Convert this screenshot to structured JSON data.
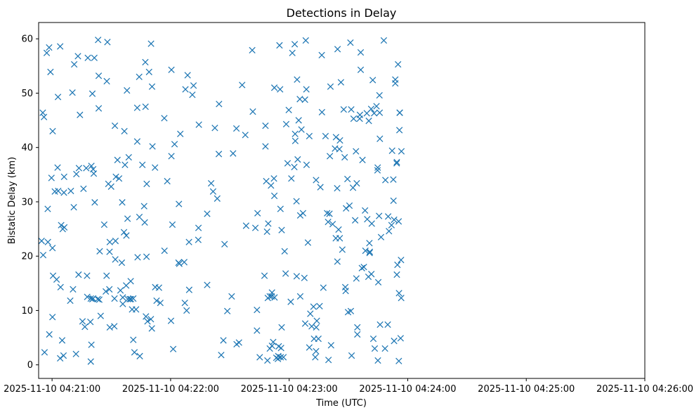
{
  "chart_data": {
    "type": "scatter",
    "title": "Detections in Delay",
    "xlabel": "Time (UTC)",
    "ylabel": "Bistatic Delay (km)",
    "x_unit": "seconds after 2025-11-10 04:21:00 UTC",
    "xlim": [
      -6.8,
      300
    ],
    "ylim": [
      -2.5,
      63
    ],
    "x_ticks": [
      {
        "value": 0,
        "label": "2025-11-10 04:21:00"
      },
      {
        "value": 60,
        "label": "2025-11-10 04:22:00"
      },
      {
        "value": 120,
        "label": "2025-11-10 04:23:00"
      },
      {
        "value": 180,
        "label": "2025-11-10 04:24:00"
      },
      {
        "value": 240,
        "label": "2025-11-10 04:25:00"
      },
      {
        "value": 300,
        "label": "2025-11-10 04:26:00"
      }
    ],
    "y_ticks": [
      0,
      10,
      20,
      30,
      40,
      50,
      60
    ],
    "marker": "x",
    "color": "#1f77b4",
    "grid": false,
    "points": [
      [
        -5.3,
        22.8
      ],
      [
        -4.7,
        46.4
      ],
      [
        -4.5,
        20.2
      ],
      [
        -4.1,
        45.6
      ],
      [
        -3.8,
        2.3
      ],
      [
        -2.7,
        57.4
      ],
      [
        -2.2,
        28.7
      ],
      [
        -2.1,
        22.6
      ],
      [
        -1.5,
        58.4
      ],
      [
        -1.4,
        5.6
      ],
      [
        -0.8,
        53.9
      ],
      [
        0.2,
        8.8
      ],
      [
        0.3,
        43.0
      ],
      [
        -0.3,
        34.4
      ],
      [
        0.2,
        21.5
      ],
      [
        0.5,
        16.4
      ],
      [
        1.4,
        31.9
      ],
      [
        2.3,
        15.7
      ],
      [
        3.1,
        32.0
      ],
      [
        2.8,
        36.3
      ],
      [
        3.0,
        49.3
      ],
      [
        4.1,
        58.6
      ],
      [
        4.1,
        1.2
      ],
      [
        4.3,
        14.3
      ],
      [
        4.6,
        25.7
      ],
      [
        5.1,
        4.5
      ],
      [
        5.4,
        25.0
      ],
      [
        5.8,
        1.7
      ],
      [
        6.0,
        31.7
      ],
      [
        6.1,
        34.6
      ],
      [
        6.2,
        25.3
      ],
      [
        9.2,
        11.8
      ],
      [
        9.5,
        32.0
      ],
      [
        10.3,
        50.1
      ],
      [
        10.6,
        13.9
      ],
      [
        11.0,
        29.0
      ],
      [
        11.2,
        55.3
      ],
      [
        12.1,
        2.0
      ],
      [
        12.3,
        35.1
      ],
      [
        13.1,
        56.8
      ],
      [
        13.4,
        16.6
      ],
      [
        13.6,
        36.2
      ],
      [
        14.1,
        46.0
      ],
      [
        15.4,
        8.0
      ],
      [
        15.9,
        32.4
      ],
      [
        16.6,
        7.0
      ],
      [
        17.3,
        36.2
      ],
      [
        17.7,
        16.4
      ],
      [
        17.8,
        12.5
      ],
      [
        18.1,
        56.5
      ],
      [
        19.4,
        7.9
      ],
      [
        19.6,
        12.2
      ],
      [
        19.6,
        0.6
      ],
      [
        19.9,
        36.6
      ],
      [
        19.9,
        3.7
      ],
      [
        20.4,
        49.9
      ],
      [
        20.4,
        12.1
      ],
      [
        20.8,
        36.0
      ],
      [
        20.8,
        12.2
      ],
      [
        21.1,
        35.2
      ],
      [
        21.4,
        56.5
      ],
      [
        21.6,
        29.9
      ],
      [
        23.1,
        12.1
      ],
      [
        23.3,
        59.8
      ],
      [
        23.6,
        53.2
      ],
      [
        23.6,
        47.2
      ],
      [
        23.9,
        12.0
      ],
      [
        24.1,
        20.9
      ],
      [
        24.6,
        9.0
      ],
      [
        26.4,
        25.8
      ],
      [
        27.2,
        13.5
      ],
      [
        27.6,
        16.4
      ],
      [
        27.7,
        52.2
      ],
      [
        28.0,
        59.4
      ],
      [
        28.5,
        33.3
      ],
      [
        29.0,
        13.9
      ],
      [
        29.1,
        20.8
      ],
      [
        29.2,
        22.6
      ],
      [
        29.2,
        6.9
      ],
      [
        29.9,
        32.8
      ],
      [
        31.5,
        7.1
      ],
      [
        31.6,
        12.2
      ],
      [
        31.8,
        44.0
      ],
      [
        32.0,
        19.4
      ],
      [
        32.1,
        22.8
      ],
      [
        32.3,
        34.6
      ],
      [
        33.1,
        37.7
      ],
      [
        33.9,
        34.3
      ],
      [
        34.6,
        13.7
      ],
      [
        35.3,
        18.8
      ],
      [
        35.5,
        29.9
      ],
      [
        35.8,
        11.2
      ],
      [
        35.8,
        12.4
      ],
      [
        36.4,
        24.4
      ],
      [
        36.6,
        43.0
      ],
      [
        36.9,
        36.8
      ],
      [
        37.5,
        14.6
      ],
      [
        37.6,
        23.8
      ],
      [
        37.9,
        50.5
      ],
      [
        38.2,
        26.9
      ],
      [
        38.3,
        12.1
      ],
      [
        38.8,
        38.2
      ],
      [
        39.3,
        12.1
      ],
      [
        39.8,
        15.4
      ],
      [
        39.9,
        12.1
      ],
      [
        40.5,
        10.2
      ],
      [
        41.1,
        12.2
      ],
      [
        41.1,
        4.6
      ],
      [
        41.7,
        2.3
      ],
      [
        42.5,
        10.2
      ],
      [
        43.1,
        47.3
      ],
      [
        43.1,
        41.1
      ],
      [
        43.3,
        19.8
      ],
      [
        44.1,
        53.0
      ],
      [
        44.2,
        27.2
      ],
      [
        44.4,
        1.6
      ],
      [
        45.7,
        36.8
      ],
      [
        46.6,
        29.2
      ],
      [
        46.9,
        26.2
      ],
      [
        47.2,
        55.7
      ],
      [
        47.3,
        47.5
      ],
      [
        47.5,
        8.9
      ],
      [
        47.8,
        19.9
      ],
      [
        47.9,
        33.3
      ],
      [
        48.3,
        8.0
      ],
      [
        49.1,
        53.9
      ],
      [
        50.0,
        8.4
      ],
      [
        50.1,
        59.1
      ],
      [
        50.5,
        6.7
      ],
      [
        50.6,
        51.2
      ],
      [
        50.8,
        40.2
      ],
      [
        52.1,
        36.3
      ],
      [
        52.2,
        14.3
      ],
      [
        52.9,
        11.8
      ],
      [
        54.1,
        14.2
      ],
      [
        54.8,
        11.4
      ],
      [
        56.8,
        45.4
      ],
      [
        56.9,
        21.0
      ],
      [
        58.3,
        33.8
      ],
      [
        60.2,
        8.1
      ],
      [
        60.4,
        54.3
      ],
      [
        60.4,
        38.4
      ],
      [
        60.9,
        25.8
      ],
      [
        61.3,
        2.9
      ],
      [
        62.0,
        40.6
      ],
      [
        64.0,
        18.8
      ],
      [
        64.2,
        29.6
      ],
      [
        64.4,
        18.6
      ],
      [
        64.9,
        42.5
      ],
      [
        66.9,
        18.9
      ],
      [
        67.2,
        11.4
      ],
      [
        67.5,
        50.7
      ],
      [
        68.1,
        10.0
      ],
      [
        68.6,
        53.3
      ],
      [
        69.3,
        22.6
      ],
      [
        69.4,
        13.8
      ],
      [
        71.0,
        49.7
      ],
      [
        71.6,
        51.4
      ],
      [
        74.0,
        23.0
      ],
      [
        74.1,
        25.2
      ],
      [
        74.3,
        44.2
      ],
      [
        78.5,
        14.7
      ],
      [
        78.5,
        27.8
      ],
      [
        80.5,
        33.4
      ],
      [
        81.5,
        31.9
      ],
      [
        82.4,
        43.6
      ],
      [
        83.6,
        30.6
      ],
      [
        84.4,
        38.8
      ],
      [
        84.5,
        48.0
      ],
      [
        85.6,
        1.8
      ],
      [
        86.7,
        4.5
      ],
      [
        87.3,
        22.2
      ],
      [
        88.7,
        9.9
      ],
      [
        90.9,
        12.6
      ],
      [
        91.6,
        38.9
      ],
      [
        93.3,
        43.5
      ],
      [
        93.4,
        3.8
      ],
      [
        94.6,
        4.1
      ],
      [
        96.2,
        51.5
      ],
      [
        97.8,
        42.3
      ],
      [
        98.2,
        25.6
      ],
      [
        101.3,
        57.9
      ],
      [
        101.6,
        46.6
      ],
      [
        102.9,
        25.2
      ],
      [
        103.7,
        10.1
      ],
      [
        103.7,
        6.3
      ],
      [
        104.0,
        27.9
      ],
      [
        105.1,
        1.4
      ],
      [
        107.5,
        16.4
      ],
      [
        108.0,
        40.2
      ],
      [
        108.0,
        44.0
      ],
      [
        108.4,
        33.8
      ],
      [
        108.8,
        24.5
      ],
      [
        109.0,
        0.8
      ],
      [
        109.2,
        12.3
      ],
      [
        109.4,
        26.0
      ],
      [
        110.2,
        3.0
      ],
      [
        110.2,
        12.6
      ],
      [
        110.8,
        33.0
      ],
      [
        111.1,
        12.6
      ],
      [
        111.3,
        3.5
      ],
      [
        111.3,
        13.3
      ],
      [
        111.9,
        4.2
      ],
      [
        112.3,
        34.3
      ],
      [
        112.5,
        51.0
      ],
      [
        112.5,
        31.1
      ],
      [
        112.6,
        12.4
      ],
      [
        113.5,
        1.3
      ],
      [
        114.3,
        1.1
      ],
      [
        114.5,
        1.6
      ],
      [
        114.7,
        3.4
      ],
      [
        115.1,
        58.8
      ],
      [
        115.4,
        50.7
      ],
      [
        115.6,
        28.7
      ],
      [
        115.7,
        1.4
      ],
      [
        115.9,
        3.1
      ],
      [
        116.2,
        6.9
      ],
      [
        116.2,
        24.8
      ],
      [
        117.1,
        1.4
      ],
      [
        117.7,
        20.9
      ],
      [
        118.2,
        16.8
      ],
      [
        118.5,
        44.3
      ],
      [
        119.2,
        37.1
      ],
      [
        119.8,
        46.9
      ],
      [
        120.8,
        11.6
      ],
      [
        121.1,
        34.3
      ],
      [
        121.6,
        57.4
      ],
      [
        122.6,
        36.4
      ],
      [
        122.8,
        59.0
      ],
      [
        123.0,
        42.5
      ],
      [
        123.1,
        41.2
      ],
      [
        123.7,
        30.1
      ],
      [
        123.8,
        16.3
      ],
      [
        124.0,
        52.5
      ],
      [
        124.3,
        37.8
      ],
      [
        124.8,
        45.0
      ],
      [
        125.4,
        48.9
      ],
      [
        125.6,
        12.6
      ],
      [
        125.6,
        27.5
      ],
      [
        126.2,
        43.3
      ],
      [
        127.0,
        27.9
      ],
      [
        127.7,
        16.0
      ],
      [
        128.0,
        48.8
      ],
      [
        128.1,
        7.6
      ],
      [
        128.4,
        59.7
      ],
      [
        128.7,
        50.7
      ],
      [
        128.8,
        36.8
      ],
      [
        129.5,
        22.5
      ],
      [
        130.2,
        42.1
      ],
      [
        130.2,
        3.2
      ],
      [
        130.7,
        9.4
      ],
      [
        131.4,
        7.1
      ],
      [
        132.3,
        10.7
      ],
      [
        132.6,
        4.8
      ],
      [
        133.2,
        1.4
      ],
      [
        133.6,
        34.0
      ],
      [
        133.6,
        2.5
      ],
      [
        133.7,
        6.9
      ],
      [
        134.0,
        8.1
      ],
      [
        134.8,
        4.8
      ],
      [
        135.4,
        10.8
      ],
      [
        135.8,
        32.7
      ],
      [
        136.5,
        57.0
      ],
      [
        136.6,
        46.5
      ],
      [
        137.3,
        14.2
      ],
      [
        138.4,
        42.1
      ],
      [
        139.2,
        27.9
      ],
      [
        139.7,
        26.3
      ],
      [
        139.9,
        0.9
      ],
      [
        140.4,
        27.8
      ],
      [
        140.6,
        38.4
      ],
      [
        140.9,
        51.2
      ],
      [
        141.2,
        3.6
      ],
      [
        142.0,
        25.9
      ],
      [
        143.2,
        39.8
      ],
      [
        143.6,
        23.3
      ],
      [
        143.7,
        41.9
      ],
      [
        144.3,
        32.5
      ],
      [
        144.4,
        19.0
      ],
      [
        144.5,
        58.1
      ],
      [
        145.0,
        24.9
      ],
      [
        145.4,
        39.7
      ],
      [
        145.6,
        23.3
      ],
      [
        145.7,
        41.3
      ],
      [
        146.2,
        52.0
      ],
      [
        146.9,
        21.2
      ],
      [
        147.6,
        47.0
      ],
      [
        148.1,
        38.2
      ],
      [
        148.4,
        14.3
      ],
      [
        148.6,
        13.6
      ],
      [
        148.8,
        28.8
      ],
      [
        149.5,
        34.2
      ],
      [
        149.8,
        9.7
      ],
      [
        150.5,
        29.3
      ],
      [
        151.0,
        59.3
      ],
      [
        151.2,
        9.9
      ],
      [
        151.4,
        47.0
      ],
      [
        151.6,
        1.7
      ],
      [
        152.3,
        32.6
      ],
      [
        152.6,
        45.3
      ],
      [
        153.4,
        26.6
      ],
      [
        153.8,
        39.3
      ],
      [
        154.0,
        15.9
      ],
      [
        154.2,
        33.4
      ],
      [
        154.5,
        6.9
      ],
      [
        154.5,
        5.6
      ],
      [
        155.7,
        45.3
      ],
      [
        155.8,
        46.0
      ],
      [
        156.2,
        57.5
      ],
      [
        156.2,
        54.3
      ],
      [
        156.8,
        17.8
      ],
      [
        157.1,
        37.7
      ],
      [
        157.8,
        18.0
      ],
      [
        158.4,
        28.4
      ],
      [
        158.6,
        21.0
      ],
      [
        159.3,
        46.3
      ],
      [
        159.5,
        26.8
      ],
      [
        160.1,
        16.2
      ],
      [
        160.3,
        44.9
      ],
      [
        160.6,
        22.4
      ],
      [
        160.7,
        20.6
      ],
      [
        160.8,
        20.8
      ],
      [
        161.5,
        47.1
      ],
      [
        161.6,
        16.7
      ],
      [
        161.8,
        26.0
      ],
      [
        162.3,
        52.4
      ],
      [
        162.6,
        4.8
      ],
      [
        163.0,
        46.3
      ],
      [
        163.3,
        3.0
      ],
      [
        164.2,
        47.6
      ],
      [
        164.7,
        35.8
      ],
      [
        164.8,
        36.3
      ],
      [
        164.9,
        0.8
      ],
      [
        165.1,
        15.2
      ],
      [
        165.5,
        27.4
      ],
      [
        165.7,
        49.6
      ],
      [
        165.8,
        46.4
      ],
      [
        165.9,
        41.6
      ],
      [
        166.0,
        7.4
      ],
      [
        166.5,
        23.5
      ],
      [
        167.9,
        59.7
      ],
      [
        168.5,
        3.0
      ],
      [
        168.7,
        34.0
      ],
      [
        169.9,
        7.4
      ],
      [
        170.1,
        27.3
      ],
      [
        170.5,
        24.6
      ],
      [
        171.8,
        25.7
      ],
      [
        172.1,
        39.4
      ],
      [
        172.7,
        34.1
      ],
      [
        172.8,
        30.2
      ],
      [
        173.1,
        26.7
      ],
      [
        173.1,
        4.4
      ],
      [
        173.7,
        51.8
      ],
      [
        173.7,
        52.5
      ],
      [
        174.4,
        37.1
      ],
      [
        174.5,
        37.3
      ],
      [
        174.5,
        16.6
      ],
      [
        174.8,
        18.4
      ],
      [
        175.1,
        55.3
      ],
      [
        175.4,
        26.4
      ],
      [
        175.5,
        0.7
      ],
      [
        175.6,
        13.2
      ],
      [
        175.8,
        43.2
      ],
      [
        175.9,
        46.4
      ],
      [
        176.0,
        46.4
      ],
      [
        176.4,
        4.9
      ],
      [
        176.6,
        19.3
      ],
      [
        176.7,
        12.3
      ],
      [
        176.8,
        39.3
      ]
    ]
  }
}
